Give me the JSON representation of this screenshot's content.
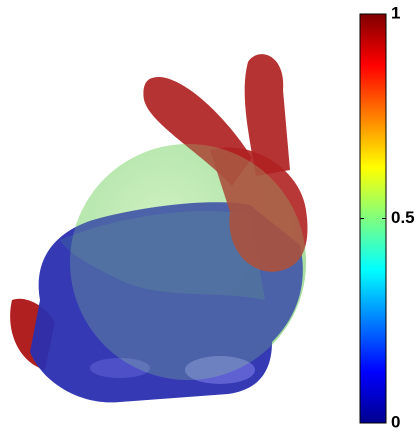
{
  "colorbar": {
    "lim": [
      0,
      1
    ],
    "ticks": [
      0,
      0.5,
      1
    ]
  }
}
